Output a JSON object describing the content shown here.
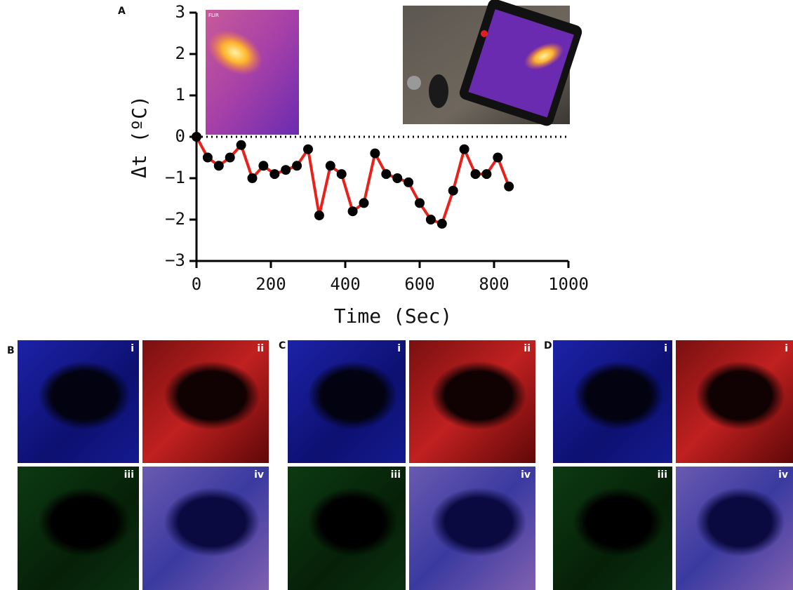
{
  "chart_data": {
    "type": "line",
    "panel_label": "A",
    "x": [
      0,
      30,
      60,
      90,
      120,
      150,
      180,
      210,
      240,
      270,
      300,
      330,
      360,
      390,
      420,
      450,
      480,
      510,
      540,
      570,
      600,
      630,
      660,
      690,
      720,
      750,
      780,
      810,
      840
    ],
    "series": [
      {
        "color": "#e8221a",
        "marker_color": "#000000",
        "values": [
          0,
          -0.5,
          -0.7,
          -0.5,
          -0.2,
          -1.0,
          -0.7,
          -0.9,
          -0.8,
          -0.7,
          -0.3,
          -1.9,
          -0.7,
          -0.9,
          -1.8,
          -1.6,
          -0.4,
          -0.9,
          -1.0,
          -1.1,
          -1.6,
          -2.0,
          -2.1,
          -1.3,
          -0.3,
          -0.9,
          -0.9,
          -0.5,
          -1.2
        ]
      }
    ],
    "xlabel": "Time (Sec)",
    "ylabel": "Δt (ºC)",
    "xlim": [
      0,
      1000
    ],
    "xticks": [
      0,
      200,
      400,
      600,
      800,
      1000
    ],
    "ylim": [
      -3,
      3
    ],
    "yticks": [
      {
        "value": -3,
        "label": "−3"
      },
      {
        "value": -2,
        "label": "−2"
      },
      {
        "value": -1,
        "label": "−1"
      },
      0,
      1,
      2,
      3
    ],
    "reference_line": 0,
    "inset_text": "FLIR"
  },
  "panels": [
    {
      "label": "B",
      "tiles": [
        "i",
        "ii",
        "iii",
        "iv"
      ]
    },
    {
      "label": "C",
      "tiles": [
        "i",
        "ii",
        "iii",
        "iv"
      ]
    },
    {
      "label": "D",
      "tiles": [
        "i",
        "i",
        "iii",
        "iv"
      ]
    }
  ]
}
